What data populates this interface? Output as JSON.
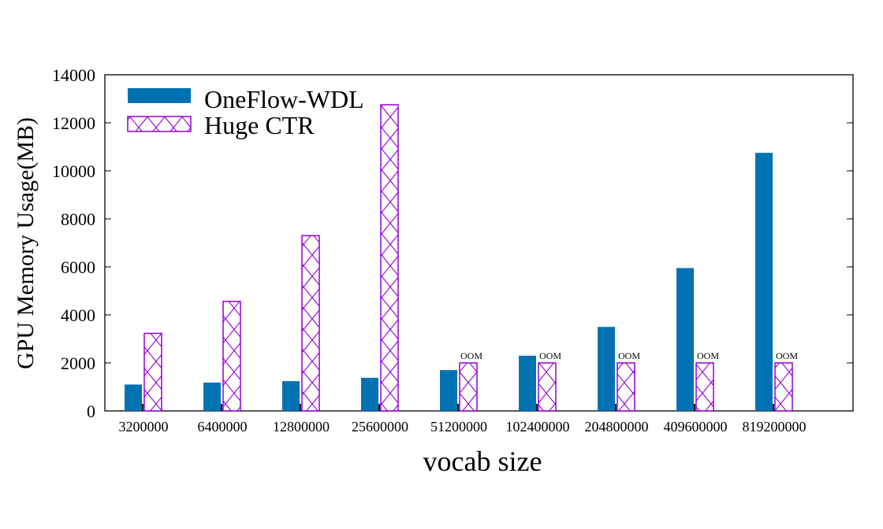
{
  "chart_data": {
    "type": "bar",
    "xlabel": "vocab size",
    "ylabel": "GPU Memory Usage(MB)",
    "ylim": [
      0,
      14000
    ],
    "yticks": [
      0,
      2000,
      4000,
      6000,
      8000,
      10000,
      12000,
      14000
    ],
    "categories": [
      "3200000",
      "6400000",
      "12800000",
      "25600000",
      "51200000",
      "102400000",
      "204800000",
      "409600000",
      "819200000"
    ],
    "series": [
      {
        "name": "OneFlow-WDL",
        "color": "#0072b2",
        "pattern": "solid",
        "values": [
          1100,
          1180,
          1240,
          1380,
          1700,
          2300,
          3500,
          5950,
          10750
        ]
      },
      {
        "name": "Huge CTR",
        "color": "#9400d3",
        "pattern": "crosshatch",
        "values": [
          3230,
          4560,
          7300,
          12750,
          2000,
          2000,
          2000,
          2000,
          2000
        ],
        "annotations": [
          "",
          "",
          "",
          "",
          "OOM",
          "OOM",
          "OOM",
          "OOM",
          "OOM"
        ]
      }
    ],
    "legend": "top-left",
    "grid": false
  }
}
